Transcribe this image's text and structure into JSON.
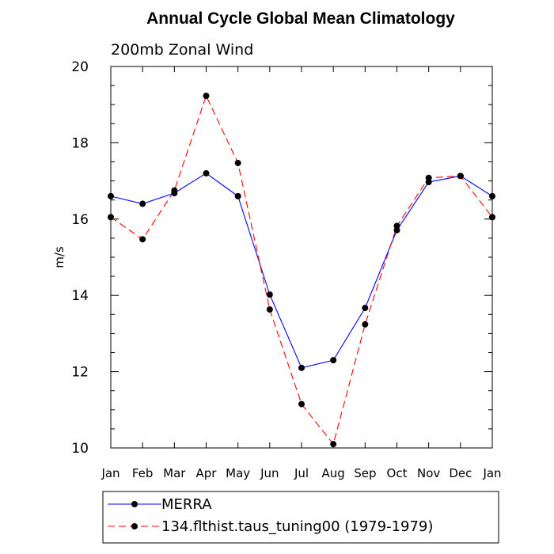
{
  "chart_data": {
    "type": "line",
    "title": "Annual Cycle Global Mean Climatology",
    "subtitle": "200mb Zonal Wind",
    "xlabel": "",
    "ylabel": "m/s",
    "ylim": [
      10,
      20
    ],
    "yticks": [
      "10",
      "12",
      "14",
      "16",
      "18",
      "20"
    ],
    "categories": [
      "Jan",
      "Feb",
      "Mar",
      "Apr",
      "May",
      "Jun",
      "Jul",
      "Aug",
      "Sep",
      "Oct",
      "Nov",
      "Dec",
      "Jan"
    ],
    "series": [
      {
        "name": "MERRA",
        "color": "#0000ff",
        "dash": "solid",
        "values": [
          16.6,
          16.4,
          16.68,
          17.2,
          16.6,
          14.02,
          12.1,
          12.3,
          13.67,
          15.71,
          16.97,
          17.13,
          16.6
        ]
      },
      {
        "name": "134.flthist.taus_tuning00 (1979-1979)",
        "color": "#ff0000",
        "dash": "dashed",
        "values": [
          16.05,
          15.47,
          16.75,
          19.23,
          17.47,
          13.63,
          11.15,
          10.1,
          13.24,
          15.82,
          17.08,
          17.13,
          16.05
        ]
      }
    ],
    "legend_position": "bottom"
  }
}
